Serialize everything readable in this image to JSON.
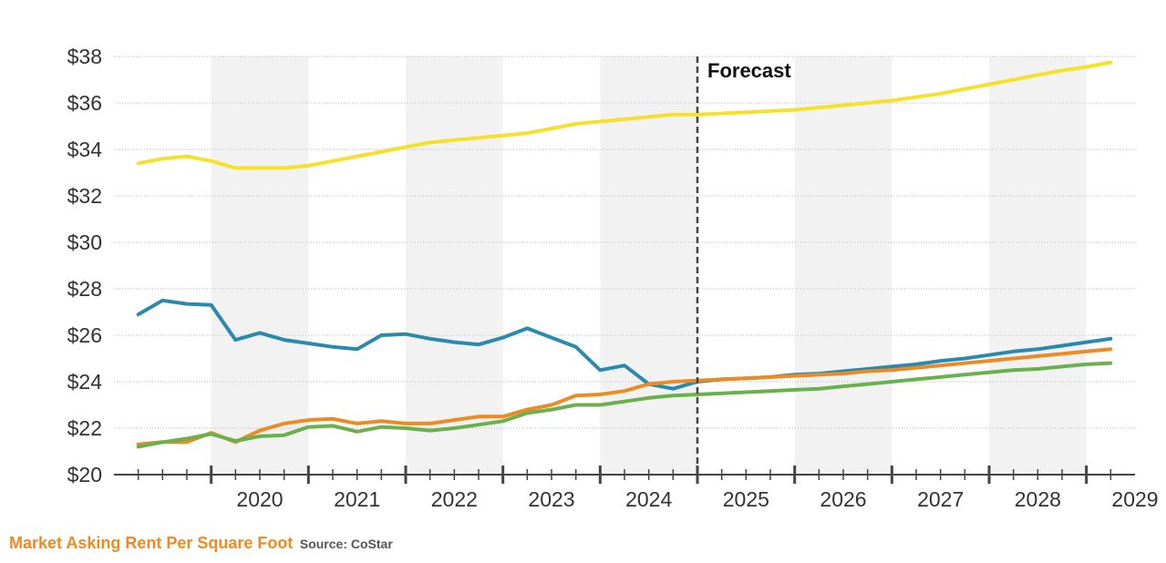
{
  "chart_data": {
    "type": "line",
    "title": "Market Asking Rent Per Square Foot",
    "source": "Source: CoStar",
    "xlabel": "",
    "ylabel": "",
    "x_start": 2019.25,
    "quarter_step": 0.25,
    "xlim": [
      2019.0,
      2029.5
    ],
    "ylim": [
      20,
      38
    ],
    "y_ticks": [
      20,
      22,
      24,
      26,
      28,
      30,
      32,
      34,
      36,
      38
    ],
    "y_tick_labels": [
      "$20",
      "$22",
      "$24",
      "$26",
      "$28",
      "$30",
      "$32",
      "$34",
      "$36",
      "$38"
    ],
    "x_tick_labels": [
      "2020",
      "2021",
      "2022",
      "2023",
      "2024",
      "2025",
      "2026",
      "2027",
      "2028",
      "2029"
    ],
    "shaded_years": [
      2020,
      2022,
      2024,
      2026,
      2028
    ],
    "forecast": {
      "label": "Forecast",
      "x": 2025.0
    },
    "grid": true,
    "series": [
      {
        "name": "yellow-series",
        "color": "#f7e02a",
        "values": [
          33.4,
          33.6,
          33.7,
          33.5,
          33.2,
          33.2,
          33.2,
          33.3,
          33.5,
          33.7,
          33.9,
          34.1,
          34.3,
          34.4,
          34.5,
          34.6,
          34.7,
          34.9,
          35.1,
          35.2,
          35.3,
          35.4,
          35.5,
          35.5,
          35.55,
          35.6,
          35.65,
          35.7,
          35.8,
          35.9,
          36.0,
          36.1,
          36.25,
          36.4,
          36.6,
          36.8,
          37.0,
          37.2,
          37.4,
          37.55,
          37.75
        ]
      },
      {
        "name": "blue-series",
        "color": "#2a8aad",
        "values": [
          26.9,
          27.5,
          27.35,
          27.3,
          25.8,
          26.1,
          25.8,
          25.65,
          25.5,
          25.4,
          26.0,
          26.05,
          25.85,
          25.7,
          25.6,
          25.9,
          26.3,
          25.9,
          25.5,
          24.5,
          24.7,
          23.9,
          23.7,
          24.0,
          24.1,
          24.15,
          24.2,
          24.3,
          24.35,
          24.45,
          24.55,
          24.65,
          24.75,
          24.9,
          25.0,
          25.15,
          25.3,
          25.4,
          25.55,
          25.7,
          25.85
        ]
      },
      {
        "name": "orange-series",
        "color": "#ee8a23",
        "values": [
          21.3,
          21.4,
          21.4,
          21.8,
          21.4,
          21.9,
          22.2,
          22.35,
          22.4,
          22.2,
          22.3,
          22.2,
          22.2,
          22.35,
          22.5,
          22.5,
          22.8,
          23.0,
          23.4,
          23.45,
          23.6,
          23.9,
          24.0,
          24.05,
          24.1,
          24.15,
          24.2,
          24.25,
          24.3,
          24.35,
          24.45,
          24.5,
          24.6,
          24.7,
          24.8,
          24.9,
          25.0,
          25.1,
          25.2,
          25.3,
          25.4
        ]
      },
      {
        "name": "green-series",
        "color": "#6ab04c",
        "values": [
          21.2,
          21.4,
          21.55,
          21.75,
          21.45,
          21.65,
          21.7,
          22.05,
          22.1,
          21.85,
          22.05,
          22.0,
          21.9,
          22.0,
          22.15,
          22.3,
          22.65,
          22.8,
          23.0,
          23.0,
          23.15,
          23.3,
          23.4,
          23.45,
          23.5,
          23.55,
          23.6,
          23.65,
          23.7,
          23.8,
          23.9,
          24.0,
          24.1,
          24.2,
          24.3,
          24.4,
          24.5,
          24.55,
          24.65,
          24.75,
          24.8
        ]
      }
    ]
  }
}
